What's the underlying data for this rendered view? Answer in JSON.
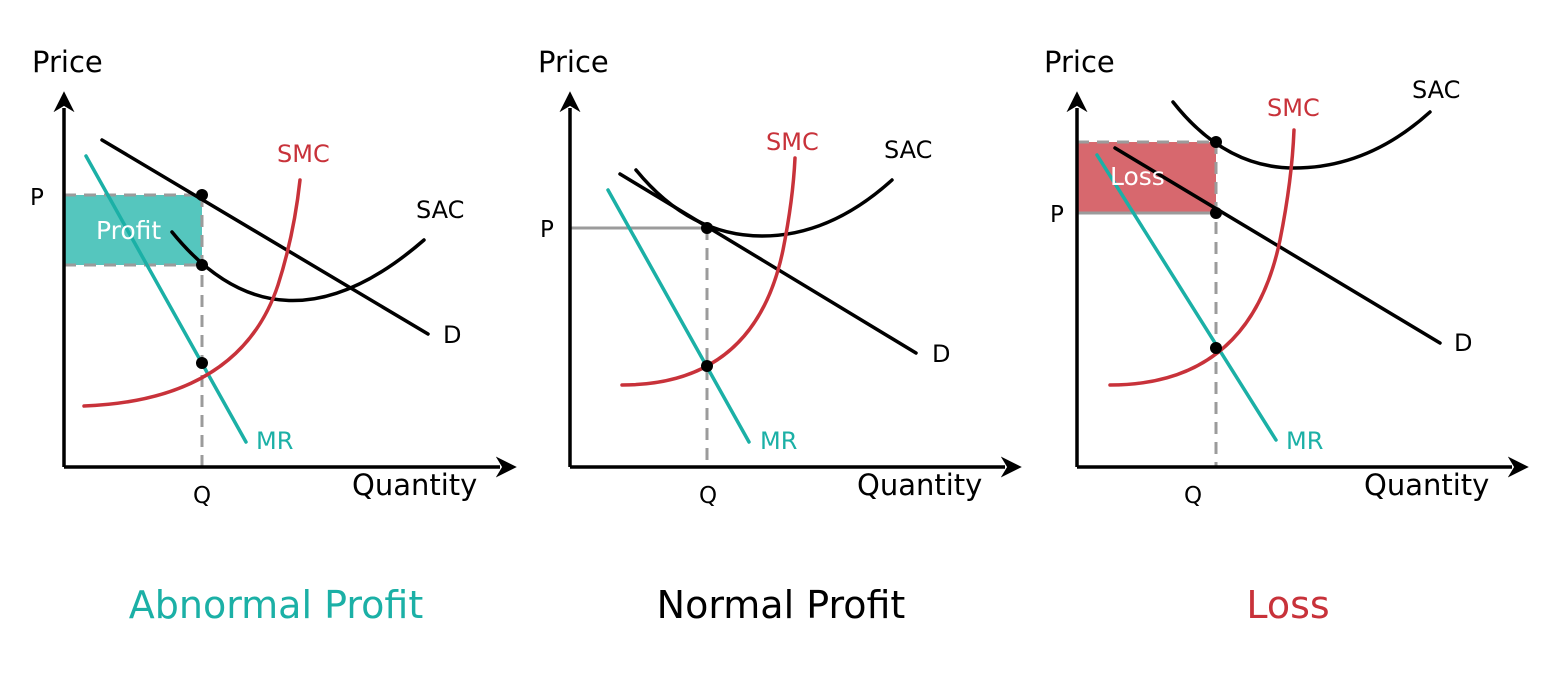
{
  "colors": {
    "profit": "#1bb0a6",
    "profit_fill": "#4cc3bb",
    "loss": "#c8323a",
    "loss_fill": "#d66369",
    "black": "#000000",
    "guide": "#9b9b9b"
  },
  "panels": [
    {
      "caption": "Abnormal Profit",
      "axis_y": "Price",
      "axis_x": "Quantity",
      "p_label": "P",
      "q_label": "Q",
      "smc_label": "SMC",
      "sac_label": "SAC",
      "d_label": "D",
      "mr_label": "MR",
      "area_label": "Profit"
    },
    {
      "caption": "Normal Profit",
      "axis_y": "Price",
      "axis_x": "Quantity",
      "p_label": "P",
      "q_label": "Q",
      "smc_label": "SMC",
      "sac_label": "SAC",
      "d_label": "D",
      "mr_label": "MR"
    },
    {
      "caption": "Loss",
      "axis_y": "Price",
      "axis_x": "Quantity",
      "p_label": "P",
      "q_label": "Q",
      "smc_label": "SMC",
      "sac_label": "SAC",
      "d_label": "D",
      "mr_label": "MR",
      "area_label": "Loss"
    }
  ]
}
